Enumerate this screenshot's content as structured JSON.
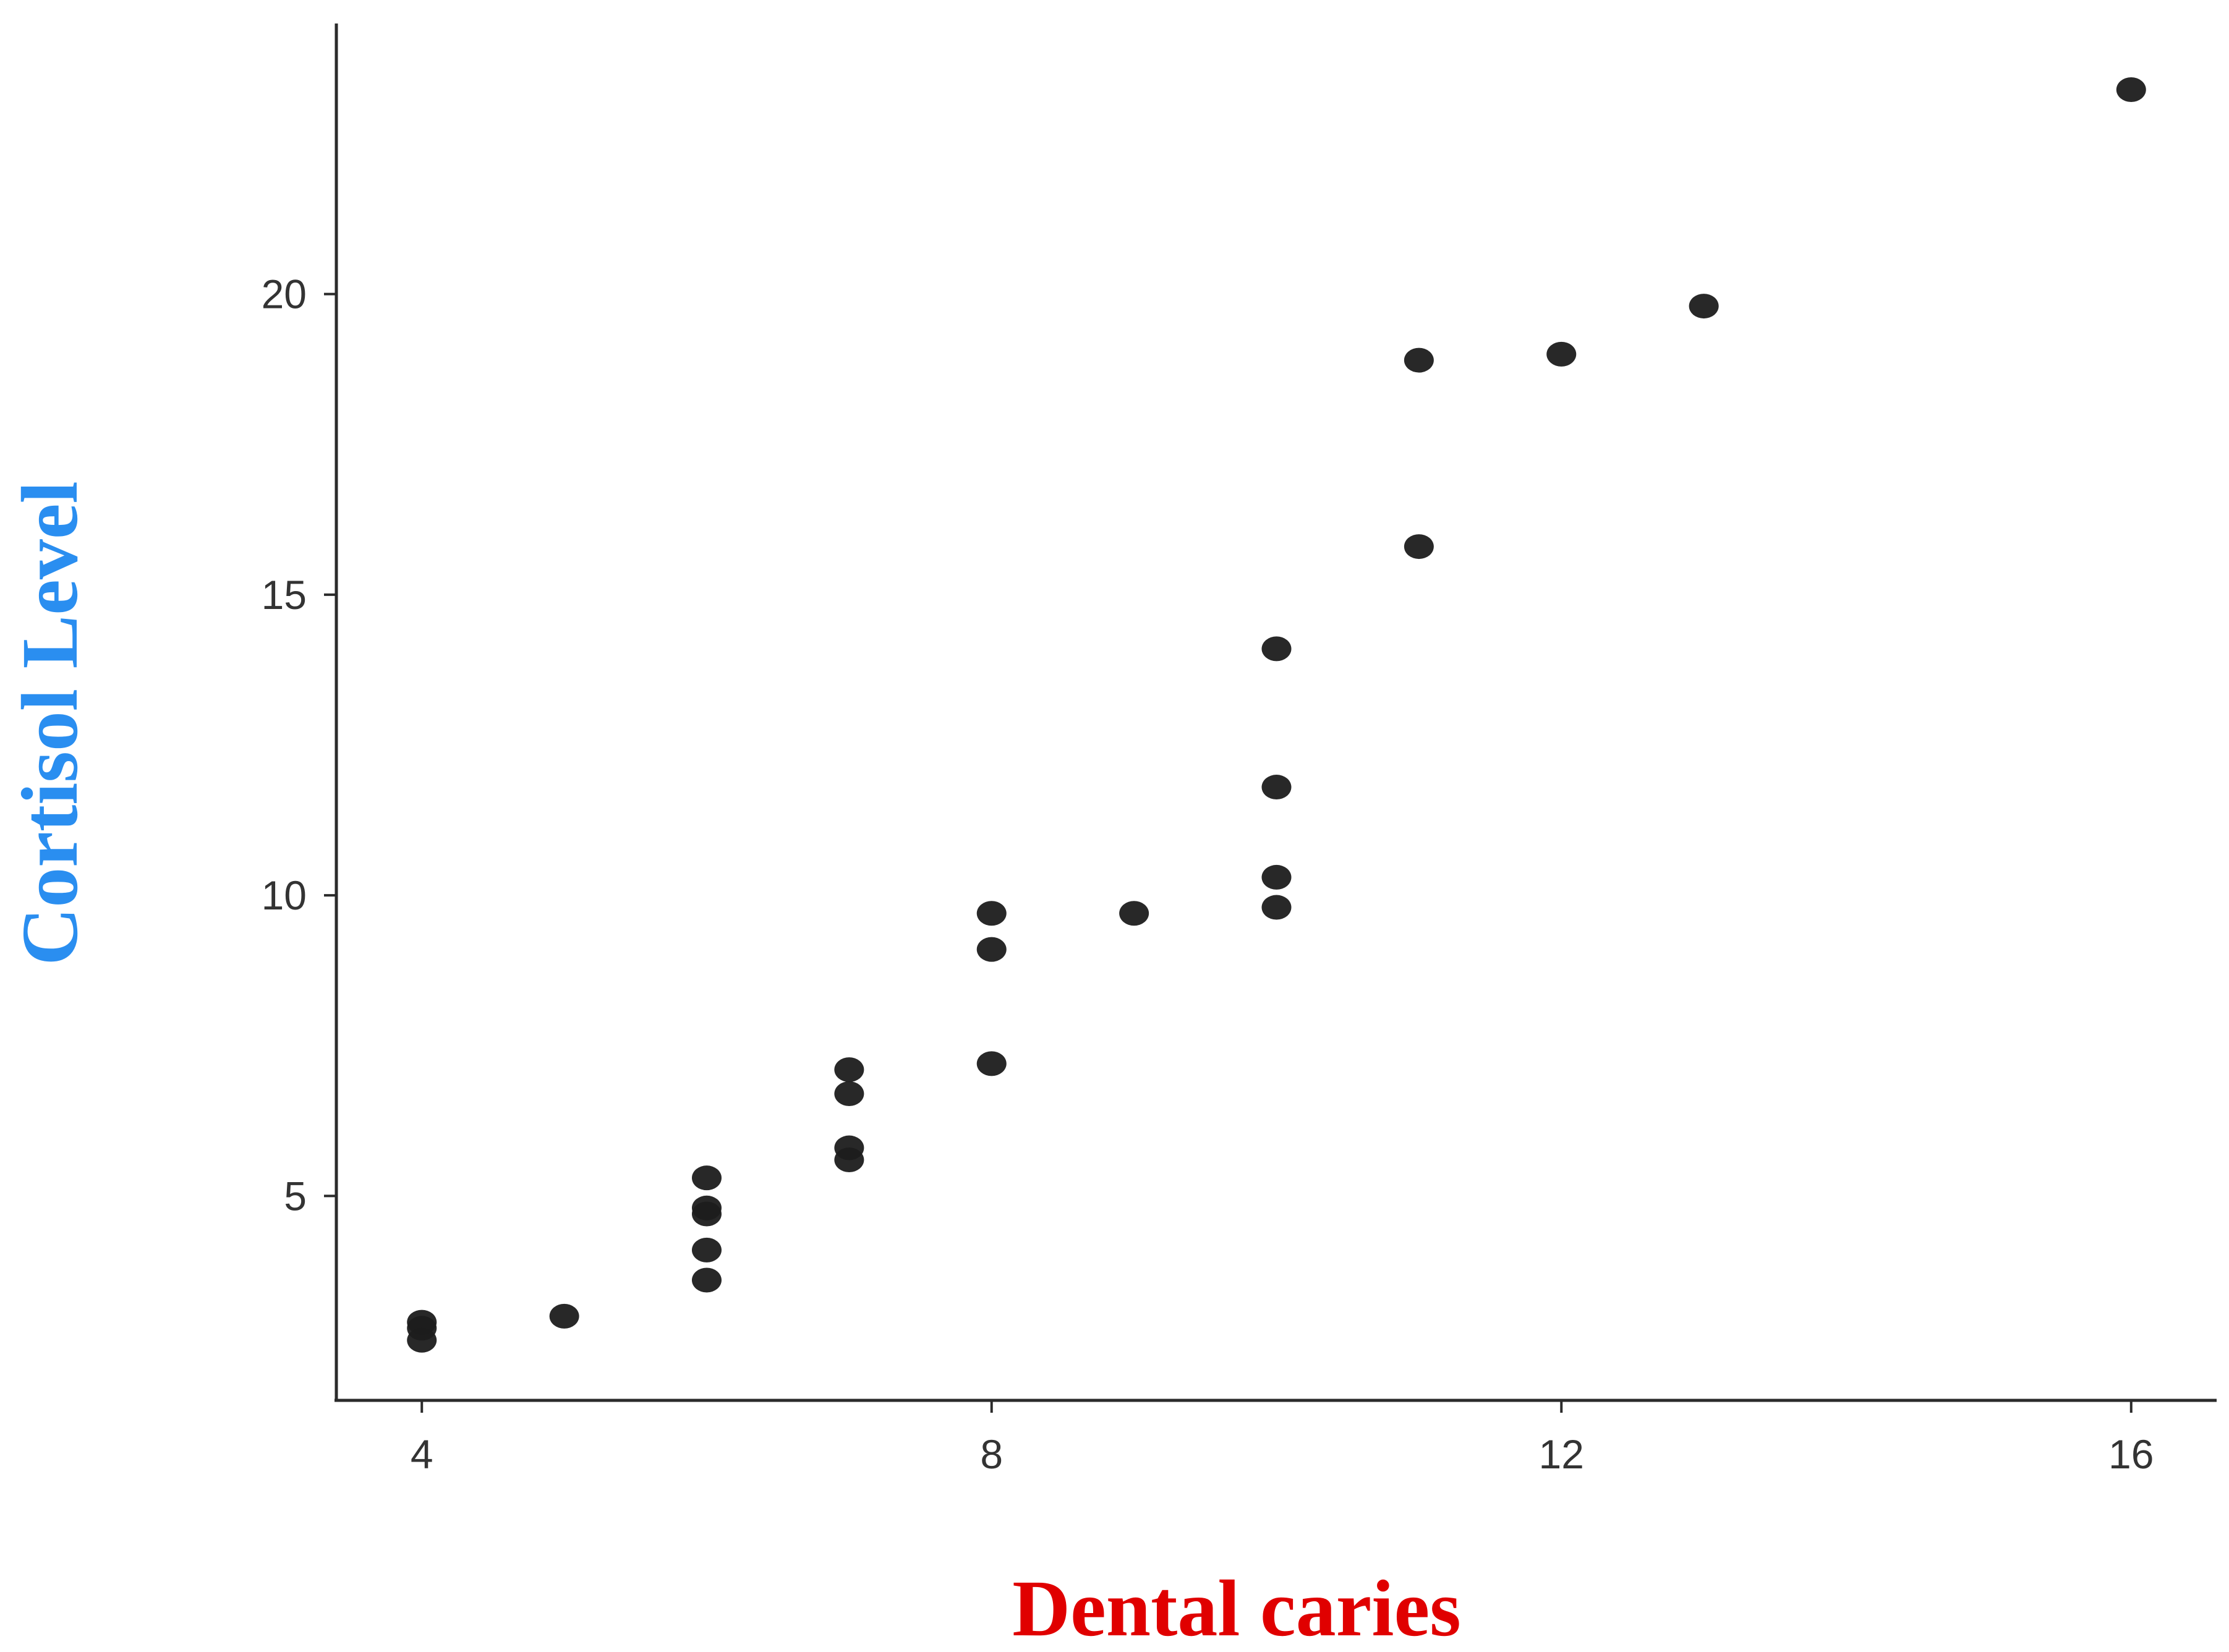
{
  "chart_data": {
    "type": "scatter",
    "title": "",
    "xlabel": "Dental caries",
    "ylabel": "Cortisol Level",
    "xlim": [
      3.4,
      16.6
    ],
    "ylim": [
      1.6,
      24.5
    ],
    "x_ticks": [
      4,
      8,
      12,
      16
    ],
    "y_ticks": [
      5,
      10,
      15,
      20
    ],
    "grid": false,
    "legend": "none",
    "colors": {
      "points": "#1c1c1c",
      "axis": "#2b2b2b",
      "xlabel": "#e00000",
      "ylabel": "#2a8ef0"
    },
    "points": [
      {
        "x": 4,
        "y": 2.6
      },
      {
        "x": 4,
        "y": 2.8
      },
      {
        "x": 4,
        "y": 2.9
      },
      {
        "x": 5,
        "y": 3.0
      },
      {
        "x": 6,
        "y": 3.6
      },
      {
        "x": 6,
        "y": 4.1
      },
      {
        "x": 6,
        "y": 4.7
      },
      {
        "x": 6,
        "y": 4.8
      },
      {
        "x": 6,
        "y": 5.3
      },
      {
        "x": 7,
        "y": 5.6
      },
      {
        "x": 7,
        "y": 5.8
      },
      {
        "x": 7,
        "y": 6.7
      },
      {
        "x": 7,
        "y": 7.1
      },
      {
        "x": 8,
        "y": 7.2
      },
      {
        "x": 8,
        "y": 9.1
      },
      {
        "x": 8,
        "y": 9.7
      },
      {
        "x": 9,
        "y": 9.7
      },
      {
        "x": 10,
        "y": 9.8
      },
      {
        "x": 10,
        "y": 10.3
      },
      {
        "x": 10,
        "y": 11.8
      },
      {
        "x": 10,
        "y": 14.1
      },
      {
        "x": 11,
        "y": 15.8
      },
      {
        "x": 11,
        "y": 18.9
      },
      {
        "x": 12,
        "y": 19.0
      },
      {
        "x": 13,
        "y": 19.8
      },
      {
        "x": 16,
        "y": 23.4
      }
    ]
  }
}
